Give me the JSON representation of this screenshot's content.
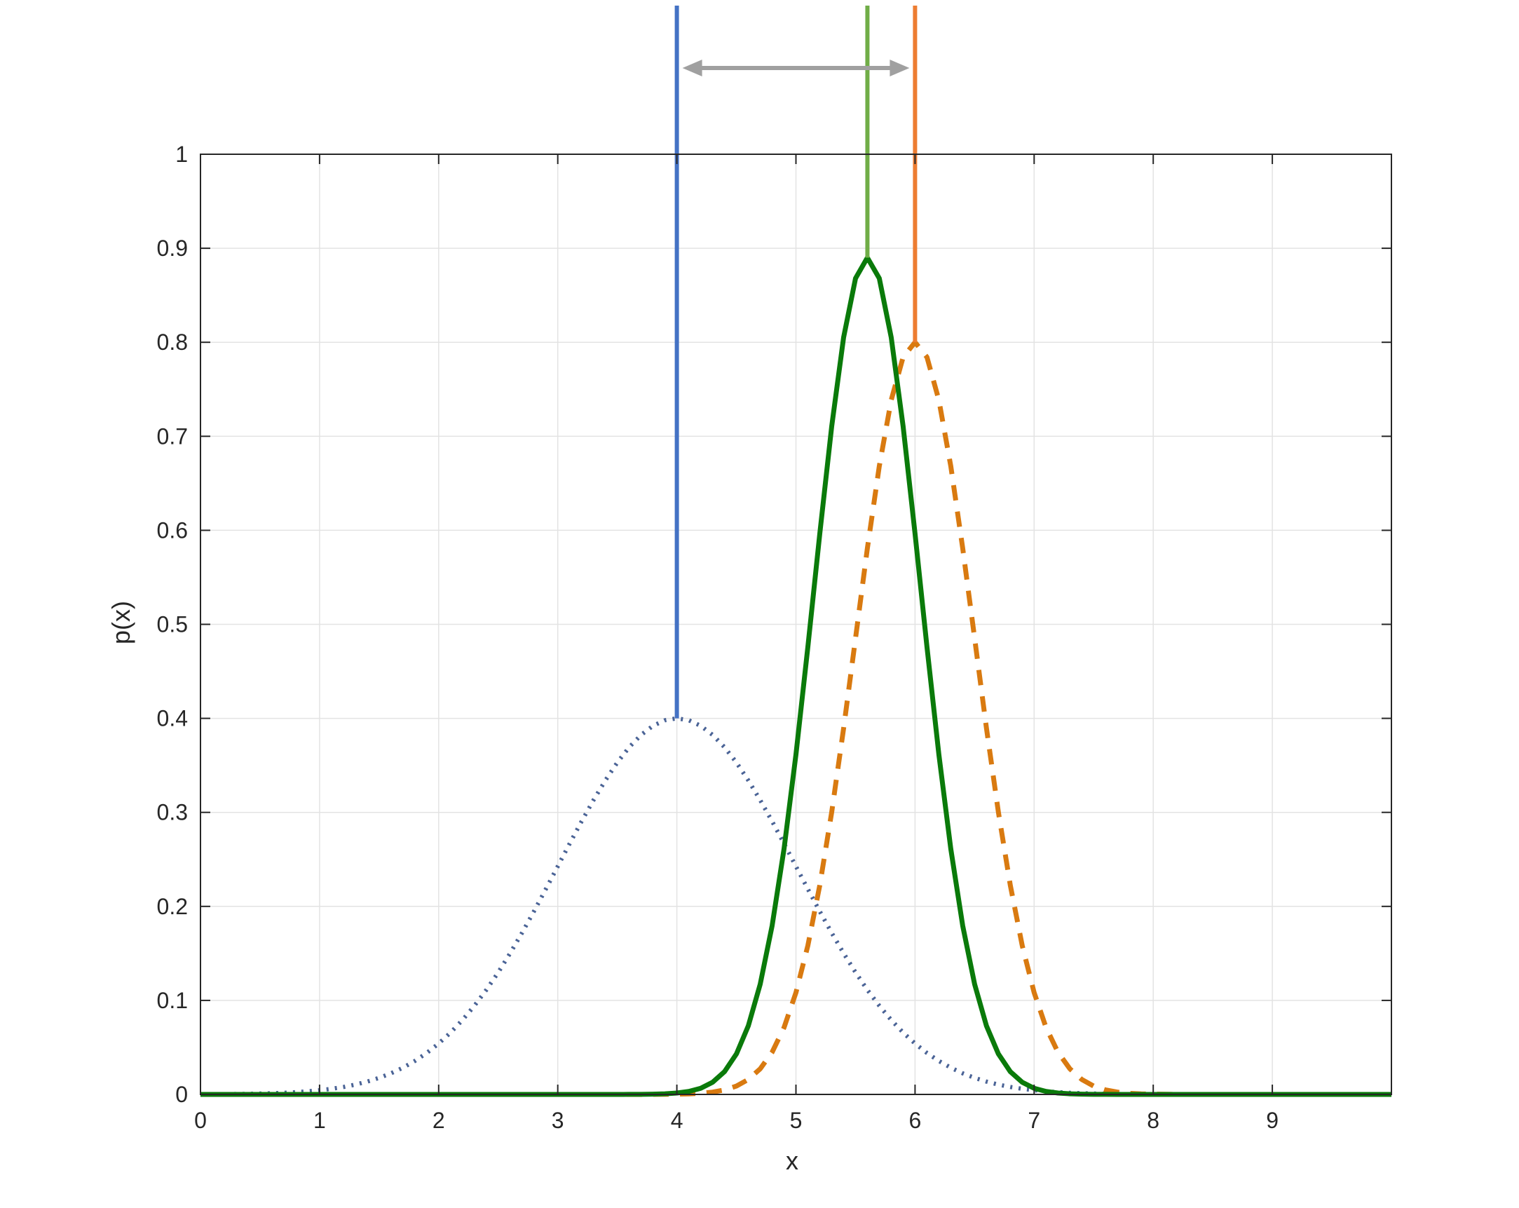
{
  "chart_data": {
    "type": "line",
    "xlabel": "x",
    "ylabel": "p(x)",
    "xlim": [
      0,
      10
    ],
    "ylim": [
      0,
      1
    ],
    "xticks": [
      0,
      1,
      2,
      3,
      4,
      5,
      6,
      7,
      8,
      9
    ],
    "yticks": [
      0,
      0.1,
      0.2,
      0.3,
      0.4,
      0.5,
      0.6,
      0.7,
      0.8,
      0.9,
      1
    ],
    "grid": true,
    "x_step": 0.1,
    "series": [
      {
        "kind": "gaussian",
        "mean": 4.0,
        "std": 1.0,
        "peak": 0.4,
        "style": "dotted",
        "color": "#4a6396"
      },
      {
        "kind": "gaussian",
        "mean": 6.0,
        "std": 0.5,
        "peak": 0.8,
        "style": "dashed",
        "color": "#d97a10"
      },
      {
        "kind": "gaussian",
        "mean": 5.6,
        "std": 0.447,
        "peak": 0.89,
        "style": "solid",
        "color": "#0a7a0a"
      }
    ],
    "markers": [
      {
        "x": 4.0,
        "y_from": 0.4,
        "color": "#4472c4"
      },
      {
        "x": 5.6,
        "y_from": 0.89,
        "color": "#70ad47"
      },
      {
        "x": 6.0,
        "y_from": 0.8,
        "color": "#ed7d31"
      }
    ],
    "arrow": {
      "x_from": 4.0,
      "x_to": 6.0,
      "color": "#a0a0a0"
    }
  }
}
